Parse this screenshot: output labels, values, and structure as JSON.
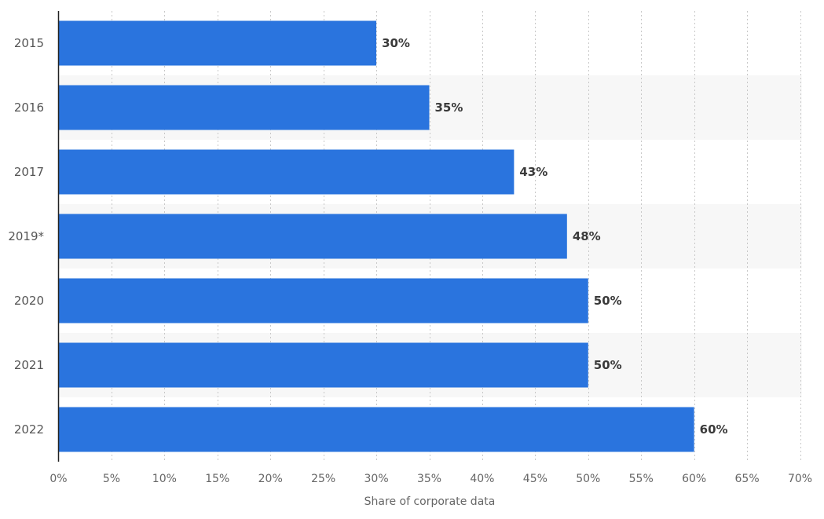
{
  "chart_data": {
    "type": "bar",
    "orientation": "horizontal",
    "categories": [
      "2015",
      "2016",
      "2017",
      "2019*",
      "2020",
      "2021",
      "2022"
    ],
    "values": [
      30,
      35,
      43,
      48,
      50,
      50,
      60
    ],
    "value_labels": [
      "30%",
      "35%",
      "43%",
      "48%",
      "50%",
      "50%",
      "60%"
    ],
    "xlabel": "Share of corporate data",
    "ylabel": "",
    "xlim": [
      0,
      70
    ],
    "xticks": [
      0,
      5,
      10,
      15,
      20,
      25,
      30,
      35,
      40,
      45,
      50,
      55,
      60,
      65,
      70
    ],
    "xtick_labels": [
      "0%",
      "5%",
      "10%",
      "15%",
      "20%",
      "25%",
      "30%",
      "35%",
      "40%",
      "45%",
      "50%",
      "55%",
      "60%",
      "65%",
      "70%"
    ],
    "grid": true,
    "bar_color": "#2a74de",
    "band_color": "#f7f7f7"
  }
}
